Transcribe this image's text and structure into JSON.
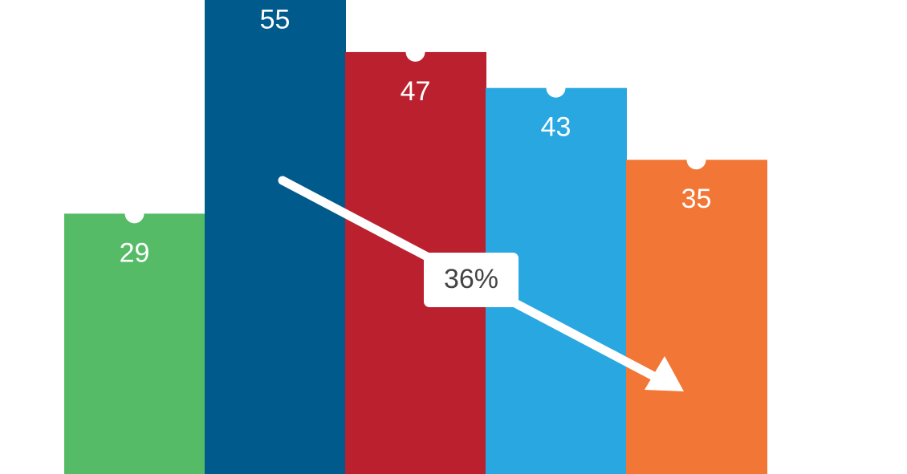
{
  "chart_data": {
    "type": "bar",
    "categories": [
      null,
      null,
      null,
      null,
      null
    ],
    "values": [
      29,
      55,
      47,
      43,
      35
    ],
    "colors": [
      "#55bb66",
      "#015a8c",
      "#bb202f",
      "#29a7e1",
      "#f27635"
    ],
    "ylim": [
      0,
      52.8
    ],
    "grid": false,
    "annotation": "36%"
  }
}
